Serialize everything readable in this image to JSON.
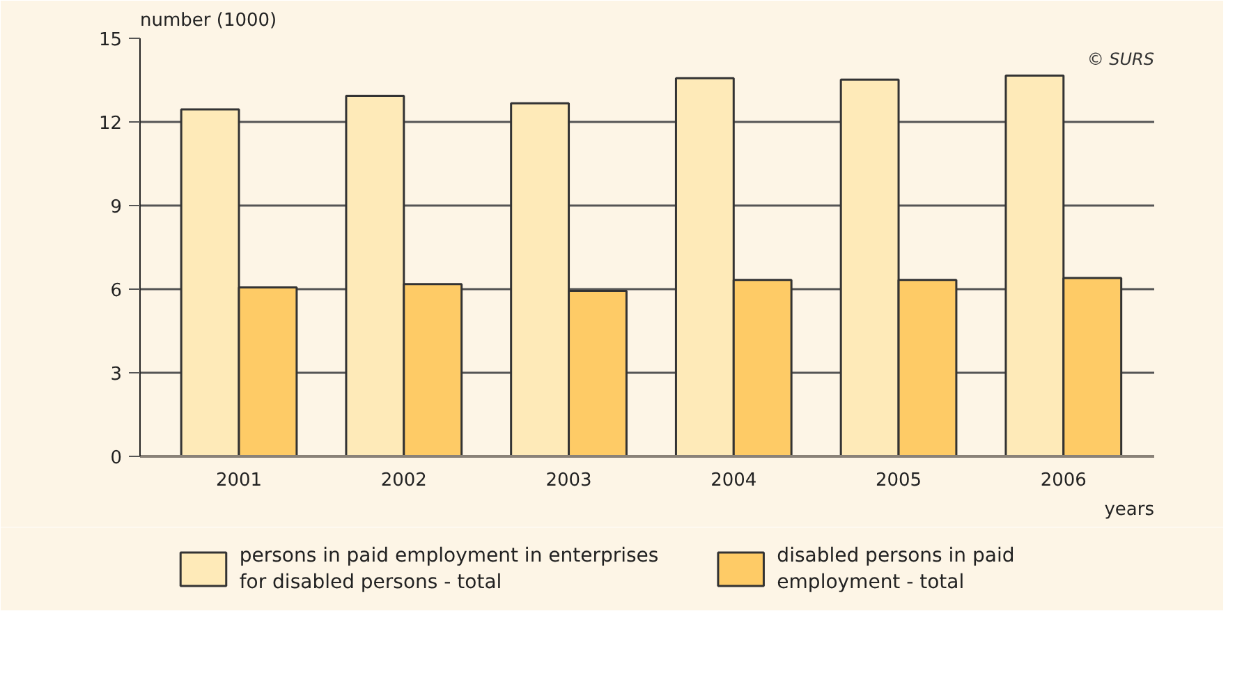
{
  "chart_data": {
    "type": "bar",
    "ylabel": "number (1000)",
    "xlabel": "years",
    "categories": [
      "2001",
      "2002",
      "2003",
      "2004",
      "2005",
      "2006"
    ],
    "series": [
      {
        "name": "persons in paid employment in enterprises for disabled persons - total",
        "color": "#feeab8",
        "values": [
          12.45,
          12.94,
          12.67,
          13.57,
          13.52,
          13.66
        ]
      },
      {
        "name": "disabled persons in paid employment - total",
        "color": "#fecb66",
        "values": [
          6.06,
          6.18,
          5.94,
          6.33,
          6.33,
          6.4
        ]
      }
    ],
    "ylim": [
      0,
      15
    ],
    "yticks": [
      0,
      3,
      6,
      9,
      12,
      15
    ],
    "grid": "y",
    "legend": "bottom",
    "annotations": [
      "© SURS"
    ]
  }
}
